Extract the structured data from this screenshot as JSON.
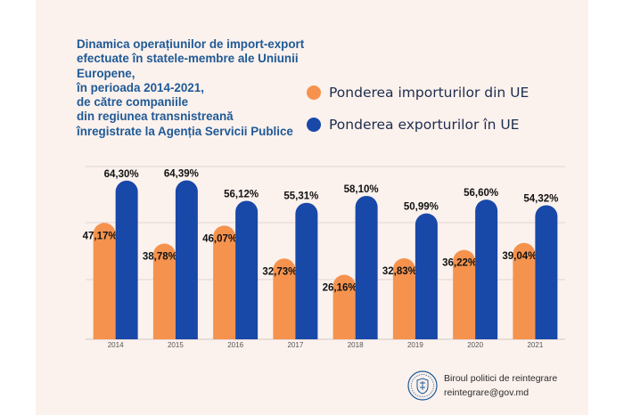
{
  "title": "Dinamica operațiunilor de import-export\nefectuate în statele-membre ale Uniunii Europene,\nîn perioada  2014-2021,\nde către companiile\ndin regiunea transnistreană\nînregistrate la Agenția Servicii Publice",
  "legend": {
    "imports": "Ponderea importurilor din UE",
    "exports": "Ponderea exporturilor în UE"
  },
  "colors": {
    "imports": "#f5934e",
    "exports": "#1848a8",
    "background": "#fbf1ed",
    "title": "#1f5a96",
    "grid": "#e2d5d1"
  },
  "chart_data": {
    "type": "bar",
    "categories": [
      "2014",
      "2015",
      "2016",
      "2017",
      "2018",
      "2019",
      "2020",
      "2021"
    ],
    "series": [
      {
        "name": "Ponderea importurilor din UE",
        "values": [
          47.17,
          38.78,
          46.07,
          32.73,
          26.16,
          32.83,
          36.22,
          39.04
        ],
        "labels": [
          "47,17%",
          "38,78%",
          "46,07%",
          "32,73%",
          "26,16%",
          "32,83%",
          "36,22%",
          "39,04%"
        ]
      },
      {
        "name": "Ponderea exporturilor în UE",
        "values": [
          64.3,
          64.39,
          56.12,
          55.31,
          58.1,
          50.99,
          56.6,
          54.32
        ],
        "labels": [
          "64,30%",
          "64,39%",
          "56,12%",
          "55,31%",
          "58,10%",
          "50,99%",
          "56,60%",
          "54,32%"
        ]
      }
    ],
    "ylim": [
      0,
      70
    ],
    "grid": true,
    "legend_position": "top-right"
  },
  "footer": {
    "line1": "Biroul politici de reintegrare",
    "line2": "reintegrare@gov.md",
    "seal_icon": "state-emblem-seal-icon"
  }
}
